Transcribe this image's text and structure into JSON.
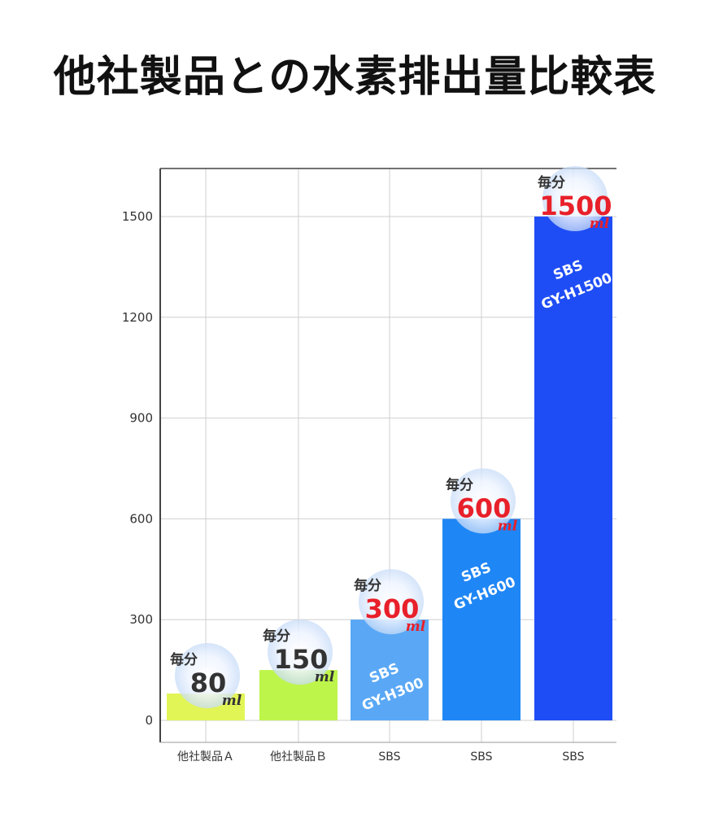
{
  "title": "他社製品との水素排出量比較表",
  "chart_data": {
    "type": "bar",
    "categories": [
      "他社製品Ａ",
      "他社製品Ｂ",
      "SBS",
      "SBS",
      "SBS"
    ],
    "values": [
      80,
      150,
      300,
      600,
      1500
    ],
    "ylim": [
      0,
      1650
    ],
    "yticks": [
      0,
      300,
      600,
      900,
      1200,
      1500
    ],
    "grid": true,
    "bar_colors": [
      "#e2f557",
      "#bdf54b",
      "#5aa8f5",
      "#1f86f5",
      "#1f4df5"
    ],
    "value_label_colors": [
      "#333333",
      "#333333",
      "#e8202a",
      "#e8202a",
      "#e8202a"
    ],
    "value_prefix": "毎分",
    "value_unit": "ml",
    "bar_labels": [
      [
        "",
        ""
      ],
      [
        "",
        ""
      ],
      [
        "SBS",
        "GY-H300"
      ],
      [
        "SBS",
        "GY-H600"
      ],
      [
        "SBS",
        "GY-H1500"
      ]
    ]
  }
}
